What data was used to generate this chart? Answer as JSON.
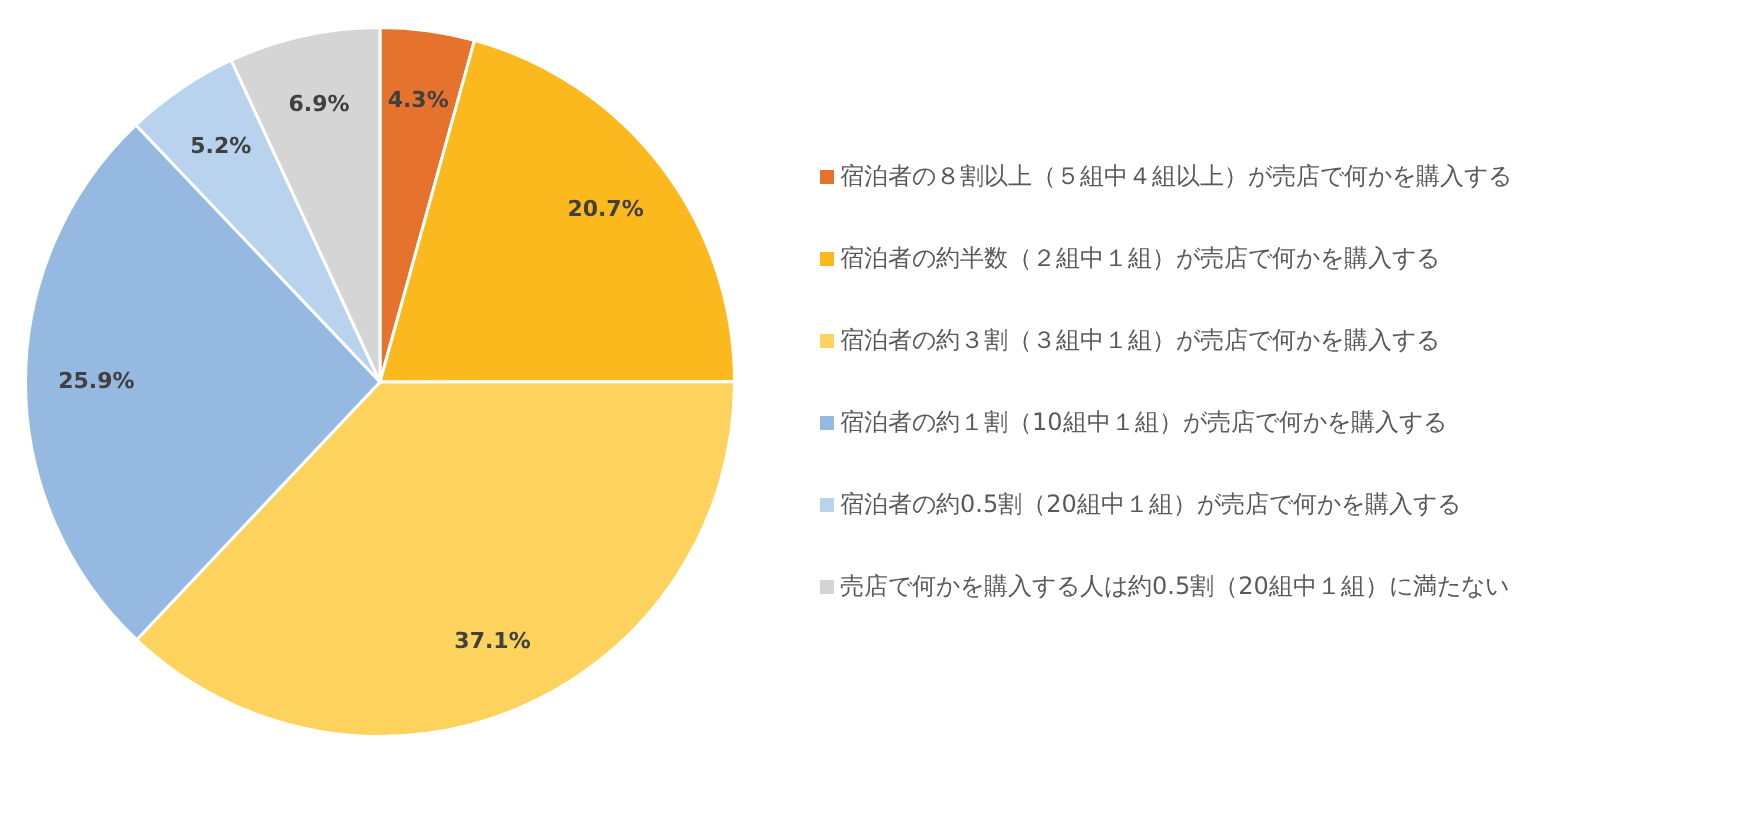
{
  "chart_data": {
    "type": "pie",
    "categories": [
      "宿泊者の８割以上（５組中４組以上）が売店で何かを購入する",
      "宿泊者の約半数（２組中１組）が売店で何かを購入する",
      "宿泊者の約３割（３組中１組）が売店で何かを購入する",
      "宿泊者の約１割（10組中１組）が売店で何かを購入する",
      "宿泊者の約0.5割（20組中１組）が売店で何かを購入する",
      "売店で何かを購入する人は約0.5割（20組中１組）に満たない"
    ],
    "values": [
      4.3,
      20.7,
      37.1,
      25.9,
      5.2,
      6.9
    ],
    "value_labels": [
      "4.3%",
      "20.7%",
      "37.1%",
      "25.9%",
      "5.2%",
      "6.9%"
    ],
    "colors": [
      "#e5722d",
      "#fbb91d",
      "#fdd35d",
      "#96b9e1",
      "#b9d3ee",
      "#d5d5d5"
    ],
    "legend": "right"
  }
}
